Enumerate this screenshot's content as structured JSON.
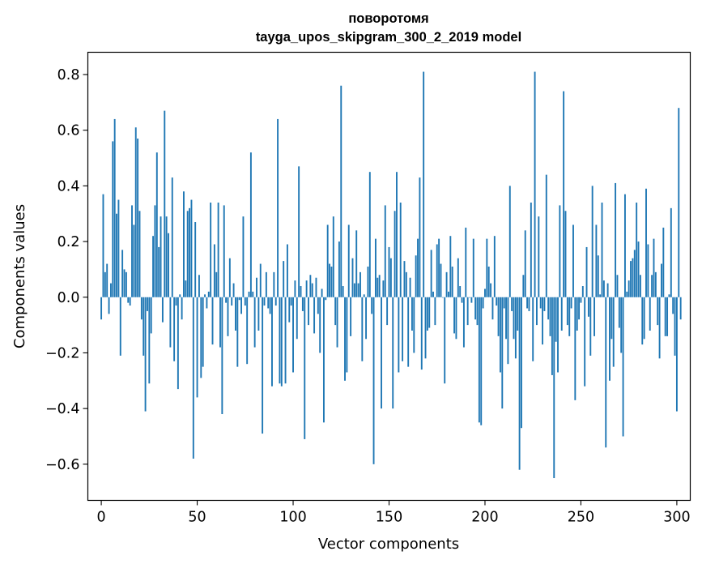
{
  "chart_data": {
    "type": "bar",
    "title": "поворотомя",
    "subtitle": "tayga_upos_skipgram_300_2_2019 model",
    "xlabel": "Vector components",
    "ylabel": "Components values",
    "xlim": [
      -7,
      307
    ],
    "ylim": [
      -0.73,
      0.88
    ],
    "xticks": [
      0,
      50,
      100,
      150,
      200,
      250,
      300
    ],
    "xtick_labels": [
      "0",
      "50",
      "100",
      "150",
      "200",
      "250",
      "300"
    ],
    "yticks": [
      -0.6,
      -0.4,
      -0.2,
      0.0,
      0.2,
      0.4,
      0.6,
      0.8
    ],
    "ytick_labels": [
      "−0.6",
      "−0.4",
      "−0.2",
      "0.0",
      "0.2",
      "0.4",
      "0.6",
      "0.8"
    ],
    "bar_color": "#1f77b4",
    "grid": false,
    "values": [
      -0.08,
      0.37,
      0.09,
      0.12,
      -0.06,
      0.05,
      0.56,
      0.64,
      0.3,
      0.35,
      -0.21,
      0.17,
      0.1,
      0.09,
      -0.02,
      -0.03,
      0.33,
      0.26,
      0.61,
      0.57,
      0.31,
      -0.08,
      -0.21,
      -0.41,
      -0.05,
      -0.31,
      -0.13,
      0.22,
      0.33,
      0.52,
      0.18,
      0.29,
      -0.09,
      0.67,
      0.29,
      0.23,
      -0.18,
      0.43,
      -0.23,
      -0.03,
      -0.33,
      0.01,
      -0.08,
      0.38,
      0.06,
      0.31,
      0.32,
      0.35,
      -0.58,
      0.27,
      -0.36,
      0.08,
      -0.29,
      -0.25,
      0.01,
      -0.04,
      0.02,
      0.34,
      -0.17,
      0.19,
      0.09,
      0.34,
      -0.18,
      -0.42,
      0.33,
      -0.02,
      -0.14,
      0.14,
      -0.03,
      0.05,
      -0.12,
      -0.25,
      -0.01,
      -0.06,
      0.29,
      -0.03,
      -0.24,
      0.02,
      0.52,
      0.02,
      -0.18,
      0.07,
      -0.12,
      0.12,
      -0.49,
      -0.03,
      0.09,
      -0.04,
      -0.06,
      -0.32,
      0.09,
      -0.03,
      0.64,
      -0.31,
      -0.32,
      0.13,
      -0.31,
      0.19,
      -0.09,
      -0.03,
      -0.27,
      0.06,
      -0.15,
      0.47,
      0.04,
      -0.05,
      -0.51,
      0.06,
      -0.1,
      0.08,
      0.05,
      -0.13,
      0.07,
      -0.06,
      -0.2,
      0.03,
      -0.45,
      -0.01,
      0.26,
      0.12,
      0.11,
      0.29,
      -0.1,
      -0.18,
      0.2,
      0.76,
      0.04,
      -0.3,
      -0.27,
      0.26,
      -0.14,
      0.14,
      0.05,
      0.24,
      0.05,
      0.09,
      -0.23,
      0.01,
      -0.15,
      0.11,
      0.45,
      -0.06,
      -0.6,
      0.21,
      0.07,
      0.08,
      -0.4,
      0.06,
      0.33,
      -0.1,
      0.18,
      0.14,
      -0.4,
      0.31,
      0.45,
      -0.27,
      0.34,
      -0.23,
      0.13,
      0.09,
      -0.25,
      0.07,
      -0.12,
      -0.2,
      0.15,
      0.21,
      0.43,
      -0.26,
      0.81,
      -0.22,
      -0.12,
      -0.11,
      0.17,
      0.02,
      -0.1,
      0.19,
      0.21,
      0.12,
      0.0,
      -0.31,
      0.09,
      0.02,
      0.22,
      0.11,
      -0.13,
      -0.15,
      0.14,
      0.04,
      -0.02,
      -0.18,
      0.25,
      -0.1,
      0.0,
      -0.02,
      0.21,
      -0.08,
      -0.1,
      -0.45,
      -0.46,
      -0.04,
      0.03,
      0.21,
      0.11,
      0.05,
      -0.08,
      0.22,
      -0.03,
      -0.14,
      -0.27,
      -0.4,
      -0.04,
      -0.15,
      -0.24,
      0.4,
      -0.05,
      -0.15,
      -0.22,
      -0.12,
      -0.62,
      -0.47,
      0.08,
      0.24,
      -0.04,
      -0.05,
      0.34,
      -0.23,
      0.81,
      -0.1,
      0.29,
      -0.04,
      -0.17,
      -0.05,
      0.44,
      -0.08,
      -0.14,
      -0.28,
      -0.65,
      -0.16,
      -0.27,
      0.33,
      -0.12,
      0.74,
      0.31,
      -0.1,
      -0.14,
      -0.04,
      0.26,
      -0.37,
      -0.12,
      -0.08,
      -0.02,
      0.04,
      -0.32,
      0.18,
      -0.07,
      -0.21,
      0.4,
      -0.14,
      0.26,
      0.15,
      0.01,
      0.34,
      0.06,
      -0.54,
      0.05,
      -0.3,
      -0.15,
      -0.25,
      0.41,
      0.08,
      -0.11,
      -0.2,
      -0.5,
      0.37,
      0.02,
      0.06,
      0.13,
      0.14,
      0.17,
      0.34,
      0.2,
      0.08,
      -0.17,
      -0.15,
      0.39,
      0.19,
      -0.12,
      0.08,
      0.21,
      0.09,
      -0.1,
      -0.22,
      0.12,
      0.25,
      -0.14,
      -0.14,
      0.01,
      0.32,
      -0.06,
      -0.21,
      -0.41,
      0.68,
      -0.08
    ]
  }
}
